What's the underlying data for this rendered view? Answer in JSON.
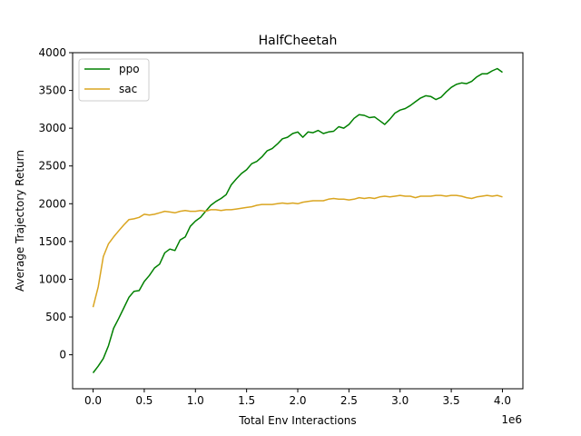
{
  "chart_data": {
    "type": "line",
    "title": "HalfCheetah",
    "xlabel": "Total Env Interactions",
    "ylabel": "Average Trajectory Return",
    "x_offset_label": "1e6",
    "xlim": [
      -0.2,
      4.2
    ],
    "ylim": [
      -450,
      4000
    ],
    "xticks": [
      0.0,
      0.5,
      1.0,
      1.5,
      2.0,
      2.5,
      3.0,
      3.5,
      4.0
    ],
    "xtick_labels": [
      "0.0",
      "0.5",
      "1.0",
      "1.5",
      "2.0",
      "2.5",
      "3.0",
      "3.5",
      "4.0"
    ],
    "yticks": [
      0,
      500,
      1000,
      1500,
      2000,
      2500,
      3000,
      3500,
      4000
    ],
    "ytick_labels": [
      "0",
      "500",
      "1000",
      "1500",
      "2000",
      "2500",
      "3000",
      "3500",
      "4000"
    ],
    "grid": false,
    "legend_position": "top-left",
    "series": [
      {
        "name": "ppo",
        "color": "#008000",
        "x": [
          0.0,
          0.05,
          0.1,
          0.15,
          0.2,
          0.25,
          0.3,
          0.35,
          0.4,
          0.45,
          0.5,
          0.55,
          0.6,
          0.65,
          0.7,
          0.75,
          0.8,
          0.85,
          0.9,
          0.95,
          1.0,
          1.05,
          1.1,
          1.15,
          1.2,
          1.25,
          1.3,
          1.35,
          1.4,
          1.45,
          1.5,
          1.55,
          1.6,
          1.65,
          1.7,
          1.75,
          1.8,
          1.85,
          1.9,
          1.95,
          2.0,
          2.05,
          2.1,
          2.15,
          2.2,
          2.25,
          2.3,
          2.35,
          2.4,
          2.45,
          2.5,
          2.55,
          2.6,
          2.65,
          2.7,
          2.75,
          2.8,
          2.85,
          2.9,
          2.95,
          3.0,
          3.05,
          3.1,
          3.15,
          3.2,
          3.25,
          3.3,
          3.35,
          3.4,
          3.45,
          3.5,
          3.55,
          3.6,
          3.65,
          3.7,
          3.75,
          3.8,
          3.85,
          3.9,
          3.95,
          4.0
        ],
        "y": [
          -240,
          -150,
          -50,
          120,
          350,
          480,
          620,
          760,
          840,
          850,
          970,
          1050,
          1150,
          1200,
          1350,
          1400,
          1380,
          1520,
          1560,
          1700,
          1770,
          1820,
          1900,
          1980,
          2030,
          2070,
          2120,
          2250,
          2330,
          2400,
          2450,
          2530,
          2560,
          2620,
          2700,
          2730,
          2790,
          2860,
          2880,
          2930,
          2950,
          2880,
          2950,
          2940,
          2970,
          2930,
          2950,
          2960,
          3020,
          3000,
          3050,
          3130,
          3180,
          3170,
          3140,
          3150,
          3100,
          3050,
          3120,
          3200,
          3240,
          3260,
          3300,
          3350,
          3400,
          3430,
          3420,
          3380,
          3410,
          3480,
          3540,
          3580,
          3600,
          3590,
          3620,
          3680,
          3720,
          3720,
          3760,
          3790,
          3740
        ]
      },
      {
        "name": "sac",
        "color": "#DAA520",
        "x": [
          0.0,
          0.05,
          0.1,
          0.15,
          0.2,
          0.25,
          0.3,
          0.35,
          0.4,
          0.45,
          0.5,
          0.55,
          0.6,
          0.65,
          0.7,
          0.75,
          0.8,
          0.85,
          0.9,
          0.95,
          1.0,
          1.05,
          1.1,
          1.15,
          1.2,
          1.25,
          1.3,
          1.35,
          1.4,
          1.45,
          1.5,
          1.55,
          1.6,
          1.65,
          1.7,
          1.75,
          1.8,
          1.85,
          1.9,
          1.95,
          2.0,
          2.05,
          2.1,
          2.15,
          2.2,
          2.25,
          2.3,
          2.35,
          2.4,
          2.45,
          2.5,
          2.55,
          2.6,
          2.65,
          2.7,
          2.75,
          2.8,
          2.85,
          2.9,
          2.95,
          3.0,
          3.05,
          3.1,
          3.15,
          3.2,
          3.25,
          3.3,
          3.35,
          3.4,
          3.45,
          3.5,
          3.55,
          3.6,
          3.65,
          3.7,
          3.75,
          3.8,
          3.85,
          3.9,
          3.95,
          4.0
        ],
        "y": [
          630,
          900,
          1300,
          1470,
          1560,
          1640,
          1720,
          1790,
          1800,
          1820,
          1860,
          1850,
          1860,
          1880,
          1900,
          1890,
          1880,
          1900,
          1910,
          1900,
          1900,
          1910,
          1900,
          1920,
          1920,
          1910,
          1920,
          1920,
          1930,
          1940,
          1950,
          1960,
          1980,
          1990,
          1990,
          1990,
          2000,
          2010,
          2000,
          2010,
          2000,
          2020,
          2030,
          2040,
          2040,
          2040,
          2060,
          2070,
          2060,
          2060,
          2050,
          2060,
          2080,
          2070,
          2080,
          2070,
          2090,
          2100,
          2090,
          2100,
          2110,
          2100,
          2100,
          2080,
          2100,
          2100,
          2100,
          2110,
          2110,
          2100,
          2110,
          2110,
          2100,
          2080,
          2070,
          2090,
          2100,
          2110,
          2100,
          2110,
          2090
        ]
      }
    ]
  }
}
